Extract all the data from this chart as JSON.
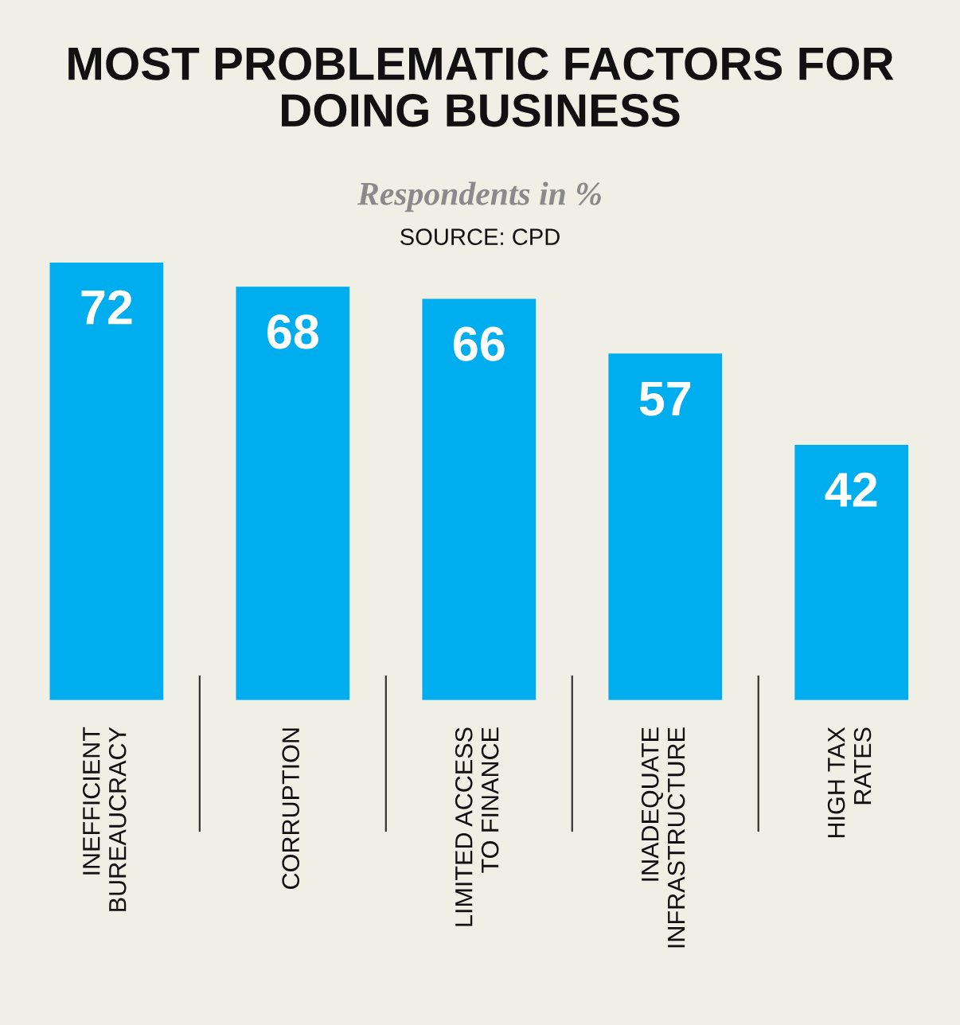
{
  "chart_data": {
    "type": "bar",
    "title": "MOST PROBLEMATIC FACTORS FOR\nDOING BUSINESS",
    "subtitle": "Respondents in %",
    "annotations": [
      "SOURCE: CPD"
    ],
    "categories": [
      "INEFFICIENT\nBUREAUCRACY",
      "CORRUPTION",
      "LIMITED ACCESS\nTO FINANCE",
      "INADEQUATE\nINFRASTRUCTURE",
      "HIGH TAX\nRATES"
    ],
    "values": [
      72,
      68,
      66,
      57,
      42
    ],
    "color": "#00aeef",
    "ylim": [
      0,
      72
    ],
    "data_labels": true
  }
}
